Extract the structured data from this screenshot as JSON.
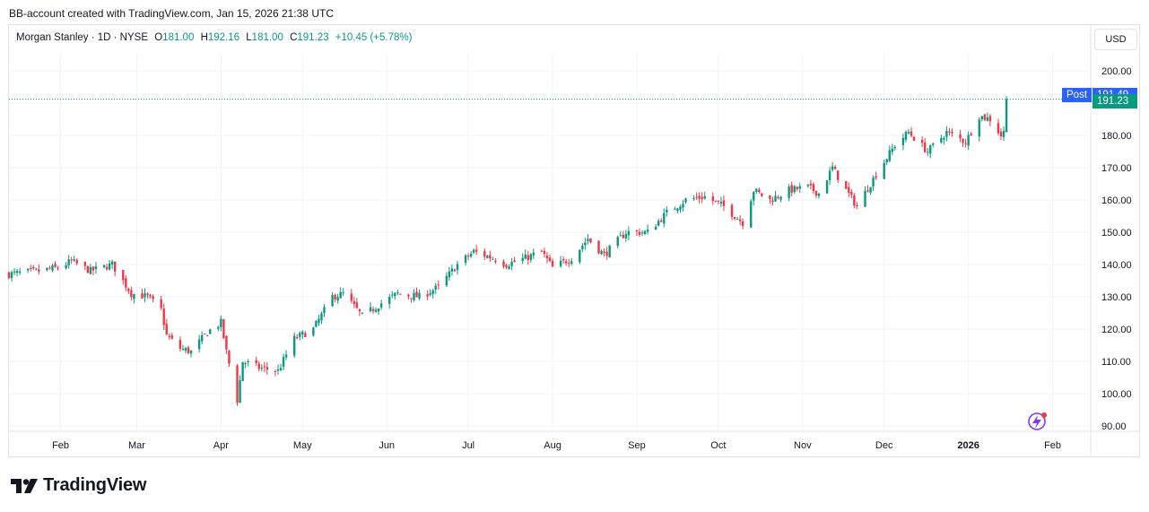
{
  "header": {
    "attribution": "BB-account created with TradingView.com, Jan 15, 2026 21:38 UTC"
  },
  "legend": {
    "symbol": "Morgan Stanley · 1D · NYSE",
    "open_label": "O",
    "open": "181.00",
    "high_label": "H",
    "high": "192.16",
    "low_label": "L",
    "low": "181.00",
    "close_label": "C",
    "close": "191.23",
    "change": "+10.45 (+5.78%)"
  },
  "currency": "USD",
  "price_tags": {
    "post_label": "Post",
    "post_value": "191.49",
    "last_value": "191.23"
  },
  "brand": {
    "name": "TradingView"
  },
  "colors": {
    "up": "#089981",
    "down": "#f23645",
    "post": "#2962ff",
    "grid": "#f0f3fa"
  },
  "chart_data": {
    "type": "candlestick",
    "title": "",
    "ylim": [
      88,
      205
    ],
    "y_ticks": [
      90,
      100,
      110,
      120,
      130,
      140,
      150,
      160,
      170,
      180,
      190,
      200
    ],
    "y_tick_labels": [
      "90.00",
      "100.00",
      "110.00",
      "120.00",
      "130.00",
      "140.00",
      "150.00",
      "160.00",
      "170.00",
      "180.00",
      "190.00",
      "200.00"
    ],
    "x_ticks": [
      {
        "label": "Feb",
        "date": "2025-02-01"
      },
      {
        "label": "Mar",
        "date": "2025-03-01"
      },
      {
        "label": "Apr",
        "date": "2025-04-01"
      },
      {
        "label": "May",
        "date": "2025-05-01"
      },
      {
        "label": "Jun",
        "date": "2025-06-01"
      },
      {
        "label": "Jul",
        "date": "2025-07-01"
      },
      {
        "label": "Aug",
        "date": "2025-08-01"
      },
      {
        "label": "Sep",
        "date": "2025-09-01"
      },
      {
        "label": "Oct",
        "date": "2025-10-01"
      },
      {
        "label": "Nov",
        "date": "2025-11-01"
      },
      {
        "label": "Dec",
        "date": "2025-12-01"
      },
      {
        "label": "2026",
        "date": "2026-01-01",
        "bold": true
      },
      {
        "label": "Feb",
        "date": "2026-02-01"
      }
    ],
    "x_range": [
      "2025-01-13",
      "2026-02-15"
    ],
    "last_date": "2026-01-15",
    "post_price": 191.49,
    "close_path": [
      [
        "2025-01-13",
        137
      ],
      [
        "2025-01-24",
        138
      ],
      [
        "2025-01-31",
        139
      ],
      [
        "2025-02-05",
        141
      ],
      [
        "2025-02-12",
        138
      ],
      [
        "2025-02-20",
        140
      ],
      [
        "2025-02-27",
        131
      ],
      [
        "2025-03-05",
        130
      ],
      [
        "2025-03-10",
        126
      ],
      [
        "2025-03-12",
        118
      ],
      [
        "2025-03-17",
        114
      ],
      [
        "2025-03-21",
        113
      ],
      [
        "2025-03-27",
        119
      ],
      [
        "2025-04-01",
        122
      ],
      [
        "2025-04-03",
        113
      ],
      [
        "2025-04-07",
        98
      ],
      [
        "2025-04-09",
        110
      ],
      [
        "2025-04-15",
        108
      ],
      [
        "2025-04-22",
        107
      ],
      [
        "2025-04-28",
        117
      ],
      [
        "2025-05-05",
        120
      ],
      [
        "2025-05-12",
        130
      ],
      [
        "2025-05-16",
        131
      ],
      [
        "2025-05-23",
        124
      ],
      [
        "2025-05-30",
        128
      ],
      [
        "2025-06-05",
        131
      ],
      [
        "2025-06-13",
        130
      ],
      [
        "2025-06-20",
        133
      ],
      [
        "2025-06-27",
        140
      ],
      [
        "2025-07-03",
        144
      ],
      [
        "2025-07-10",
        142
      ],
      [
        "2025-07-15",
        140
      ],
      [
        "2025-07-22",
        142
      ],
      [
        "2025-07-28",
        144
      ],
      [
        "2025-08-01",
        139
      ],
      [
        "2025-08-08",
        142
      ],
      [
        "2025-08-14",
        148
      ],
      [
        "2025-08-20",
        143
      ],
      [
        "2025-08-28",
        150
      ],
      [
        "2025-09-05",
        150
      ],
      [
        "2025-09-12",
        156
      ],
      [
        "2025-09-19",
        160
      ],
      [
        "2025-09-26",
        161
      ],
      [
        "2025-10-03",
        158
      ],
      [
        "2025-10-10",
        153
      ],
      [
        "2025-10-14",
        163
      ],
      [
        "2025-10-20",
        160
      ],
      [
        "2025-10-27",
        163
      ],
      [
        "2025-11-03",
        164
      ],
      [
        "2025-11-07",
        162
      ],
      [
        "2025-11-12",
        170
      ],
      [
        "2025-11-17",
        163
      ],
      [
        "2025-11-21",
        158
      ],
      [
        "2025-11-28",
        168
      ],
      [
        "2025-12-05",
        177
      ],
      [
        "2025-12-10",
        181
      ],
      [
        "2025-12-17",
        175
      ],
      [
        "2025-12-24",
        181
      ],
      [
        "2025-12-31",
        178
      ],
      [
        "2026-01-05",
        186
      ],
      [
        "2026-01-09",
        185
      ],
      [
        "2026-01-13",
        180
      ],
      [
        "2026-01-14",
        181
      ]
    ],
    "last_candle": {
      "date": "2026-01-15",
      "open": 181.0,
      "high": 192.16,
      "low": 181.0,
      "close": 191.23
    }
  }
}
